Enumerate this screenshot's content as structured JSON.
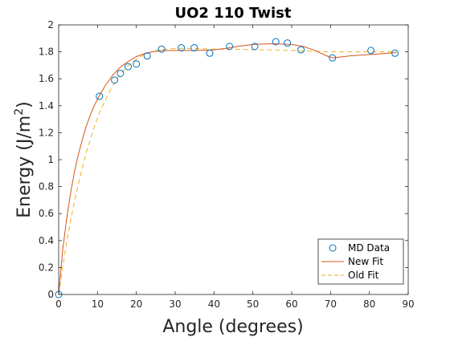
{
  "chart_data": {
    "type": "scatter",
    "title": "UO2 110 Twist",
    "xlabel": "Angle (degrees)",
    "ylabel_main": "Energy (J/m",
    "ylabel_sup": "2",
    "ylabel_tail": ")",
    "xlim": [
      0,
      90
    ],
    "ylim": [
      0,
      2
    ],
    "xticks": [
      "0",
      "10",
      "20",
      "30",
      "40",
      "50",
      "60",
      "70",
      "80",
      "90"
    ],
    "yticks": [
      "0",
      "0.2",
      "0.4",
      "0.6",
      "0.8",
      "1",
      "1.2",
      "1.4",
      "1.6",
      "1.8",
      "2"
    ],
    "grid": false,
    "legend_position": "bottom-right",
    "series": [
      {
        "name": "MD Data",
        "kind": "scatter",
        "color": "#0072bd",
        "points": [
          [
            0,
            0.0
          ],
          [
            10.5,
            1.47
          ],
          [
            14.4,
            1.59
          ],
          [
            15.9,
            1.64
          ],
          [
            17.9,
            1.69
          ],
          [
            20.0,
            1.71
          ],
          [
            22.8,
            1.77
          ],
          [
            26.5,
            1.82
          ],
          [
            31.6,
            1.83
          ],
          [
            34.9,
            1.83
          ],
          [
            38.9,
            1.79
          ],
          [
            44.0,
            1.84
          ],
          [
            50.5,
            1.84
          ],
          [
            55.9,
            1.875
          ],
          [
            58.9,
            1.865
          ],
          [
            62.4,
            1.815
          ],
          [
            70.5,
            1.755
          ],
          [
            80.4,
            1.81
          ],
          [
            86.6,
            1.79
          ]
        ]
      },
      {
        "name": "New Fit",
        "kind": "line",
        "color": "#d95319",
        "points": [
          [
            0,
            0.0
          ],
          [
            1,
            0.32
          ],
          [
            2,
            0.55
          ],
          [
            3,
            0.74
          ],
          [
            4,
            0.9
          ],
          [
            5,
            1.03
          ],
          [
            6,
            1.14
          ],
          [
            7,
            1.24
          ],
          [
            8,
            1.32
          ],
          [
            9,
            1.39
          ],
          [
            10,
            1.45
          ],
          [
            11,
            1.5
          ],
          [
            12,
            1.55
          ],
          [
            13,
            1.59
          ],
          [
            14,
            1.63
          ],
          [
            15,
            1.66
          ],
          [
            16,
            1.69
          ],
          [
            17,
            1.71
          ],
          [
            18,
            1.73
          ],
          [
            20,
            1.765
          ],
          [
            22,
            1.785
          ],
          [
            24,
            1.8
          ],
          [
            26,
            1.808
          ],
          [
            30,
            1.81
          ],
          [
            35,
            1.81
          ],
          [
            40,
            1.815
          ],
          [
            43,
            1.825
          ],
          [
            46,
            1.84
          ],
          [
            50,
            1.855
          ],
          [
            55,
            1.86
          ],
          [
            60,
            1.855
          ],
          [
            63,
            1.84
          ],
          [
            66,
            1.81
          ],
          [
            69,
            1.77
          ],
          [
            70.5,
            1.755
          ],
          [
            72,
            1.76
          ],
          [
            75,
            1.77
          ],
          [
            80,
            1.78
          ],
          [
            85,
            1.79
          ],
          [
            87,
            1.795
          ]
        ]
      },
      {
        "name": "Old Fit",
        "kind": "dashed-line",
        "color": "#edb120",
        "points": [
          [
            0,
            0.0
          ],
          [
            1,
            0.2
          ],
          [
            2,
            0.38
          ],
          [
            3,
            0.54
          ],
          [
            4,
            0.68
          ],
          [
            5,
            0.81
          ],
          [
            6,
            0.93
          ],
          [
            7,
            1.04
          ],
          [
            8,
            1.14
          ],
          [
            9,
            1.23
          ],
          [
            10,
            1.31
          ],
          [
            11,
            1.38
          ],
          [
            12,
            1.44
          ],
          [
            13,
            1.5
          ],
          [
            14,
            1.55
          ],
          [
            15,
            1.6
          ],
          [
            16,
            1.64
          ],
          [
            18,
            1.7
          ],
          [
            20,
            1.745
          ],
          [
            22,
            1.78
          ],
          [
            24,
            1.8
          ],
          [
            26,
            1.815
          ],
          [
            30,
            1.825
          ],
          [
            35,
            1.825
          ],
          [
            40,
            1.82
          ],
          [
            45,
            1.82
          ],
          [
            50,
            1.815
          ],
          [
            55,
            1.815
          ],
          [
            60,
            1.81
          ],
          [
            65,
            1.805
          ],
          [
            70,
            1.8
          ],
          [
            75,
            1.8
          ],
          [
            80,
            1.8
          ],
          [
            87,
            1.8
          ]
        ]
      }
    ]
  }
}
